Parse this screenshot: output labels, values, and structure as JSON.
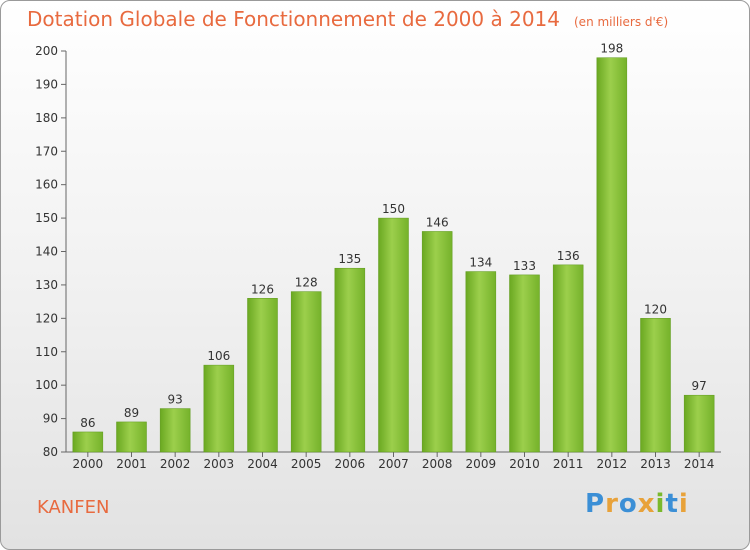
{
  "chart_data": {
    "type": "bar",
    "title": "Dotation Globale de Fonctionnement de 2000 à 2014",
    "subtitle": "(en milliers d'€)",
    "categories": [
      "2000",
      "2001",
      "2002",
      "2003",
      "2004",
      "2005",
      "2006",
      "2007",
      "2008",
      "2009",
      "2010",
      "2011",
      "2012",
      "2013",
      "2014"
    ],
    "values": [
      86,
      89,
      93,
      106,
      126,
      128,
      135,
      150,
      146,
      134,
      133,
      136,
      198,
      120,
      97
    ],
    "ylim": [
      80,
      200
    ],
    "yticks": [
      80,
      90,
      100,
      110,
      120,
      130,
      140,
      150,
      160,
      170,
      180,
      190,
      200
    ],
    "grid": false,
    "bar_color": "#7ab92c",
    "bar_color_light": "#a3d553"
  },
  "commune": "KANFEN",
  "logo": {
    "text": "Proxiti",
    "letters": [
      {
        "ch": "P",
        "color": "#3b8fd6"
      },
      {
        "ch": "r",
        "color": "#e8a23a"
      },
      {
        "ch": "o",
        "color": "#3b8fd6"
      },
      {
        "ch": "x",
        "color": "#e8a23a"
      },
      {
        "ch": "i",
        "color": "#7ab92c"
      },
      {
        "ch": "t",
        "color": "#3b8fd6"
      },
      {
        "ch": "i",
        "color": "#e8a23a"
      }
    ]
  },
  "colors": {
    "accent": "#e86a3f",
    "axis": "#555555",
    "label": "#333333"
  }
}
